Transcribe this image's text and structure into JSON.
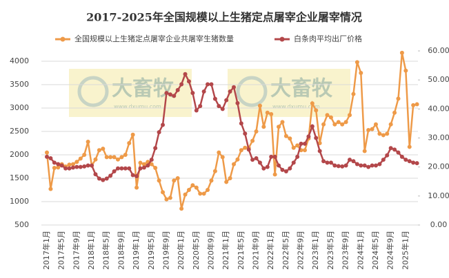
{
  "chart_data": {
    "type": "line",
    "title": "2017-2025年全国规模以上生猪定点屠宰企业屠宰情况",
    "watermark": {
      "text": "大畜牧",
      "url": "www.dxumu.com"
    },
    "categories": [
      "2017年1月",
      null,
      null,
      null,
      "2017年5月",
      null,
      null,
      null,
      "2017年9月",
      null,
      null,
      null,
      "2018年1月",
      null,
      null,
      null,
      "2018年5月",
      null,
      null,
      null,
      "2018年9月",
      null,
      null,
      null,
      "2019年1月",
      null,
      null,
      null,
      "2019年5月",
      null,
      null,
      null,
      "2019年9月",
      null,
      null,
      null,
      "2020年1月",
      null,
      null,
      null,
      "2020年5月",
      null,
      null,
      null,
      "2020年9月",
      null,
      null,
      null,
      "2021年1月",
      null,
      null,
      null,
      "2021年5月",
      null,
      null,
      null,
      "2021年9月",
      null,
      null,
      null,
      "2022年1月",
      null,
      null,
      null,
      "2022年5月",
      null,
      null,
      null,
      "2022年9月",
      null,
      null,
      null,
      "2023年1月",
      null,
      null,
      null,
      "2023年5月",
      null,
      null,
      null,
      "2023年9月",
      null,
      null,
      null,
      "2024年1月",
      null,
      null,
      null,
      "2024年5月",
      null,
      null,
      null,
      "2024年9月",
      null,
      null,
      null,
      "2025年1月",
      null,
      null,
      null
    ],
    "series": [
      {
        "name": "全国规模以上生猪定点屠宰企业共屠宰生猪数量",
        "color": "#ee9a48",
        "axis": "y",
        "values": [
          2050,
          1270,
          1720,
          1730,
          1800,
          1750,
          1790,
          1800,
          1850,
          1920,
          2000,
          2280,
          1770,
          1900,
          2100,
          2130,
          1950,
          1950,
          1950,
          1900,
          1950,
          2000,
          2250,
          2430,
          1300,
          1830,
          1800,
          1850,
          1800,
          1720,
          1450,
          1200,
          1050,
          1080,
          1450,
          1500,
          850,
          1150,
          1250,
          1350,
          1300,
          1170,
          1170,
          1250,
          1450,
          1650,
          2050,
          1950,
          1420,
          1500,
          1800,
          1900,
          2100,
          2150,
          2150,
          2300,
          2500,
          3050,
          2600,
          2900,
          2870,
          1580,
          2600,
          2700,
          2400,
          2350,
          2150,
          2200,
          2100,
          2100,
          2350,
          3100,
          2950,
          2250,
          2650,
          2850,
          2800,
          2650,
          2700,
          2650,
          2700,
          2850,
          3300,
          3980,
          3750,
          2080,
          2530,
          2550,
          2650,
          2450,
          2420,
          2450,
          2650,
          2900,
          3200,
          4180,
          3800,
          2170,
          3060,
          3080
        ]
      },
      {
        "name": "白条肉平均出厂价格",
        "color": "#b3474a",
        "axis": "y2",
        "values": [
          23.5,
          23,
          21.5,
          21,
          20.5,
          19.5,
          19.5,
          19.8,
          20,
          20,
          20.2,
          20.5,
          20.5,
          17.5,
          16,
          15.5,
          16,
          17,
          18.5,
          19.5,
          19.5,
          19.5,
          19.5,
          17.2,
          16.8,
          19.5,
          19.8,
          20.5,
          22.5,
          26.5,
          32,
          34.5,
          45.5,
          45,
          44.5,
          46.5,
          48.5,
          52,
          49.5,
          45.5,
          39.5,
          41,
          46,
          48.5,
          48.5,
          43.5,
          41,
          40,
          43,
          46,
          47.5,
          42,
          35,
          31.5,
          26,
          22.5,
          23,
          21.5,
          19.5,
          20,
          23.5,
          23.5,
          20.5,
          19,
          18.5,
          19.5,
          21.5,
          23.5,
          28,
          28,
          30.5,
          34,
          30,
          25.5,
          22,
          21.5,
          21.5,
          20.5,
          20.3,
          20.2,
          20.5,
          22.5,
          22,
          21,
          20.5,
          20.5,
          20,
          20.5,
          20.5,
          21,
          22.5,
          24,
          26.5,
          26,
          25,
          23.5,
          22.5,
          22,
          21.5,
          21.3
        ]
      }
    ],
    "ylim": [
      500,
      4000
    ],
    "yticks": [
      500,
      1000,
      1500,
      2000,
      2500,
      3000,
      3500,
      4000
    ],
    "y2lim": [
      0,
      60
    ],
    "y2ticks": [
      {
        "value": 0,
        "label": "0.00"
      },
      {
        "value": 10,
        "label": "10.00"
      },
      {
        "value": 20,
        "label": "20.00"
      },
      {
        "value": 30,
        "label": "30.00"
      },
      {
        "value": 40,
        "label": "40.00"
      },
      {
        "value": 50,
        "label": "50.00"
      },
      {
        "value": 60,
        "label": "60.00"
      }
    ],
    "grid": true
  }
}
